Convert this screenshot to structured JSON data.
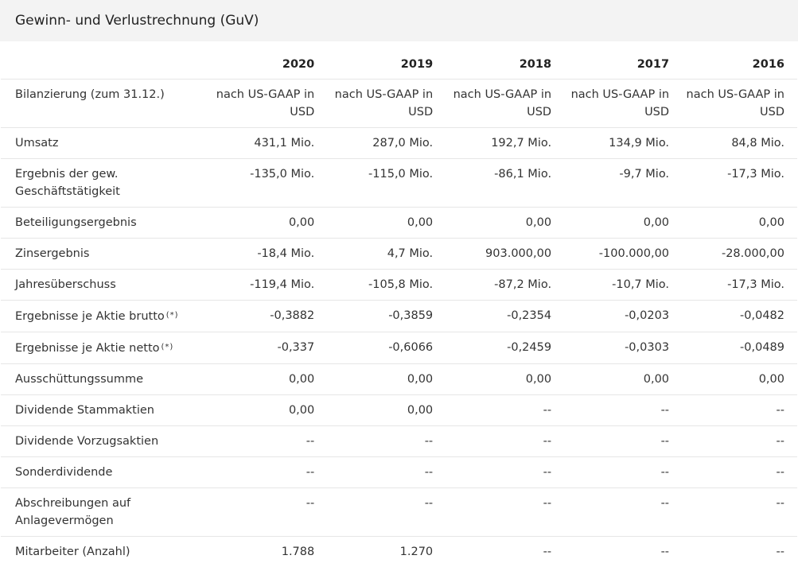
{
  "section": {
    "title": "Gewinn- und Verlustrechnung (GuV)"
  },
  "years": [
    "2020",
    "2019",
    "2018",
    "2017",
    "2016"
  ],
  "rows": [
    {
      "label": "Bilanzierung (zum 31.12.)",
      "values": [
        "nach US-GAAP in USD",
        "nach US-GAAP in USD",
        "nach US-GAAP in USD",
        "nach US-GAAP in USD",
        "nach US-GAAP in USD"
      ]
    },
    {
      "label": "Umsatz",
      "values": [
        "431,1 Mio.",
        "287,0 Mio.",
        "192,7 Mio.",
        "134,9 Mio.",
        "84,8 Mio."
      ]
    },
    {
      "label": "Ergebnis der gew. Geschäftstätigkeit",
      "values": [
        "-135,0 Mio.",
        "-115,0 Mio.",
        "-86,1 Mio.",
        "-9,7 Mio.",
        "-17,3 Mio."
      ]
    },
    {
      "label": "Beteiligungsergebnis",
      "values": [
        "0,00",
        "0,00",
        "0,00",
        "0,00",
        "0,00"
      ]
    },
    {
      "label": "Zinsergebnis",
      "values": [
        "-18,4 Mio.",
        "4,7 Mio.",
        "903.000,00",
        "-100.000,00",
        "-28.000,00"
      ]
    },
    {
      "label": "Jahresüberschuss",
      "values": [
        "-119,4 Mio.",
        "-105,8 Mio.",
        "-87,2 Mio.",
        "-10,7 Mio.",
        "-17,3 Mio."
      ]
    },
    {
      "label": "Ergebnisse je Aktie brutto",
      "footnote": "(*)",
      "values": [
        "-0,3882",
        "-0,3859",
        "-0,2354",
        "-0,0203",
        "-0,0482"
      ]
    },
    {
      "label": "Ergebnisse je Aktie netto",
      "footnote": "(*)",
      "values": [
        "-0,337",
        "-0,6066",
        "-0,2459",
        "-0,0303",
        "-0,0489"
      ]
    },
    {
      "label": "Ausschüttungssumme",
      "values": [
        "0,00",
        "0,00",
        "0,00",
        "0,00",
        "0,00"
      ]
    },
    {
      "label": "Dividende Stammaktien",
      "values": [
        "0,00",
        "0,00",
        "--",
        "--",
        "--"
      ]
    },
    {
      "label": "Dividende Vorzugsaktien",
      "values": [
        "--",
        "--",
        "--",
        "--",
        "--"
      ]
    },
    {
      "label": "Sonderdividende",
      "values": [
        "--",
        "--",
        "--",
        "--",
        "--"
      ]
    },
    {
      "label": "Abschreibungen auf Anlagevermögen",
      "values": [
        "--",
        "--",
        "--",
        "--",
        "--"
      ]
    },
    {
      "label": "Mitarbeiter (Anzahl)",
      "values": [
        "1.788",
        "1.270",
        "--",
        "--",
        "--"
      ]
    }
  ]
}
